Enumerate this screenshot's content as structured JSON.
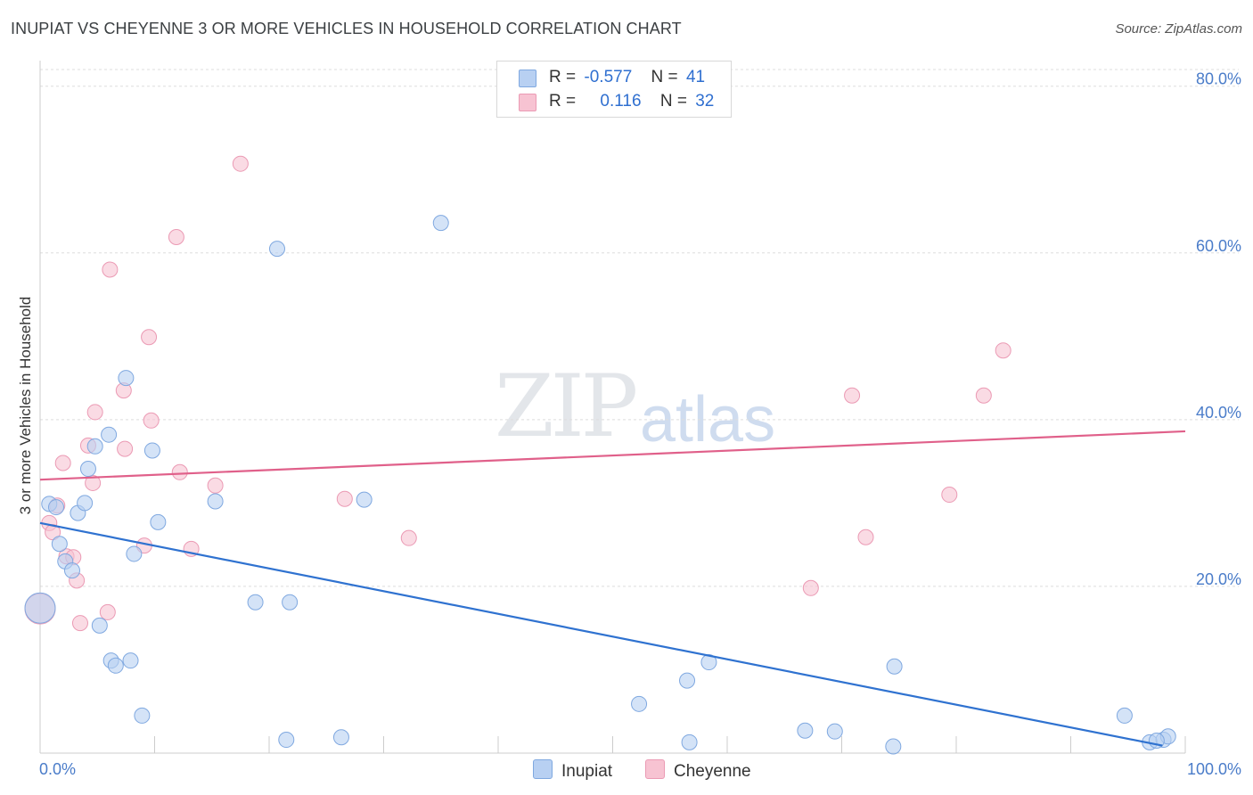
{
  "title": "INUPIAT VS CHEYENNE 3 OR MORE VEHICLES IN HOUSEHOLD CORRELATION CHART",
  "source": "Source: ZipAtlas.com",
  "watermark": {
    "zip": "ZIP",
    "atlas": "atlas"
  },
  "legend": {
    "inupiat": {
      "r_label": "R =",
      "r_value": "-0.577",
      "n_label": "N =",
      "n_value": "41"
    },
    "cheyenne": {
      "r_label": "R =",
      "r_value": "0.116",
      "n_label": "N =",
      "n_value": "32"
    }
  },
  "bottom_legend": {
    "inupiat": "Inupiat",
    "cheyenne": "Cheyenne"
  },
  "colors": {
    "inupiat_fill": "#b8d0f2",
    "inupiat_stroke": "#7fa8e0",
    "inupiat_line": "#2f72d0",
    "cheyenne_fill": "#f7c3d2",
    "cheyenne_stroke": "#eb9ab4",
    "cheyenne_line": "#e0608a",
    "tick": "#4a7cc9",
    "grid": "#dddddd"
  },
  "chart_data": {
    "type": "scatter",
    "title": "INUPIAT VS CHEYENNE 3 OR MORE VEHICLES IN HOUSEHOLD CORRELATION CHART",
    "xlabel": "",
    "ylabel": "3 or more Vehicles in Household",
    "xlim": [
      0,
      100
    ],
    "ylim": [
      0,
      82
    ],
    "x_tick_labels": [
      "0.0%",
      "100.0%"
    ],
    "y_ticks": [
      20,
      40,
      60,
      80
    ],
    "y_tick_labels": [
      "20.0%",
      "40.0%",
      "60.0%",
      "80.0%"
    ],
    "grid": true,
    "series": [
      {
        "name": "Inupiat",
        "R": -0.577,
        "N": 41,
        "trend": {
          "x": [
            0,
            98
          ],
          "y": [
            27.6,
            0.9
          ]
        },
        "points": [
          {
            "x": 0.0,
            "y": 17.4,
            "big": true
          },
          {
            "x": 0.8,
            "y": 29.9
          },
          {
            "x": 1.4,
            "y": 29.5
          },
          {
            "x": 1.7,
            "y": 25.1
          },
          {
            "x": 2.2,
            "y": 23.0
          },
          {
            "x": 2.8,
            "y": 21.9
          },
          {
            "x": 3.3,
            "y": 28.8
          },
          {
            "x": 3.9,
            "y": 30.0
          },
          {
            "x": 4.2,
            "y": 34.1
          },
          {
            "x": 4.8,
            "y": 36.8
          },
          {
            "x": 5.2,
            "y": 15.3
          },
          {
            "x": 6.0,
            "y": 38.2
          },
          {
            "x": 6.2,
            "y": 11.1
          },
          {
            "x": 6.6,
            "y": 10.5
          },
          {
            "x": 7.5,
            "y": 45.0
          },
          {
            "x": 7.9,
            "y": 11.1
          },
          {
            "x": 8.2,
            "y": 23.9
          },
          {
            "x": 8.9,
            "y": 4.5
          },
          {
            "x": 9.8,
            "y": 36.3
          },
          {
            "x": 10.3,
            "y": 27.7
          },
          {
            "x": 15.3,
            "y": 30.2
          },
          {
            "x": 18.8,
            "y": 18.1
          },
          {
            "x": 20.7,
            "y": 60.5
          },
          {
            "x": 21.5,
            "y": 1.6
          },
          {
            "x": 21.8,
            "y": 18.1
          },
          {
            "x": 26.3,
            "y": 1.9
          },
          {
            "x": 28.3,
            "y": 30.4
          },
          {
            "x": 35.0,
            "y": 63.6
          },
          {
            "x": 52.3,
            "y": 5.9
          },
          {
            "x": 56.5,
            "y": 8.7
          },
          {
            "x": 56.7,
            "y": 1.3
          },
          {
            "x": 58.4,
            "y": 10.9
          },
          {
            "x": 66.8,
            "y": 2.7
          },
          {
            "x": 69.4,
            "y": 2.6
          },
          {
            "x": 74.5,
            "y": 0.8
          },
          {
            "x": 74.6,
            "y": 10.4
          },
          {
            "x": 94.7,
            "y": 4.5
          },
          {
            "x": 96.9,
            "y": 1.3
          },
          {
            "x": 98.1,
            "y": 1.6
          },
          {
            "x": 98.5,
            "y": 2.0
          },
          {
            "x": 97.5,
            "y": 1.5
          }
        ]
      },
      {
        "name": "Cheyenne",
        "R": 0.116,
        "N": 32,
        "trend": {
          "x": [
            0,
            100
          ],
          "y": [
            32.8,
            38.6
          ]
        },
        "points": [
          {
            "x": 0.0,
            "y": 17.3,
            "big": true
          },
          {
            "x": 0.8,
            "y": 27.6
          },
          {
            "x": 1.1,
            "y": 26.5
          },
          {
            "x": 1.5,
            "y": 29.7
          },
          {
            "x": 2.0,
            "y": 34.8
          },
          {
            "x": 2.3,
            "y": 23.6
          },
          {
            "x": 2.9,
            "y": 23.5
          },
          {
            "x": 3.2,
            "y": 20.7
          },
          {
            "x": 3.5,
            "y": 15.6
          },
          {
            "x": 4.2,
            "y": 36.9
          },
          {
            "x": 4.6,
            "y": 32.4
          },
          {
            "x": 4.8,
            "y": 40.9
          },
          {
            "x": 5.9,
            "y": 16.9
          },
          {
            "x": 6.1,
            "y": 58.0
          },
          {
            "x": 7.3,
            "y": 43.5
          },
          {
            "x": 7.4,
            "y": 36.5
          },
          {
            "x": 9.1,
            "y": 24.9
          },
          {
            "x": 9.5,
            "y": 49.9
          },
          {
            "x": 9.7,
            "y": 39.9
          },
          {
            "x": 11.9,
            "y": 61.9
          },
          {
            "x": 12.2,
            "y": 33.7
          },
          {
            "x": 13.2,
            "y": 24.5
          },
          {
            "x": 15.3,
            "y": 32.1
          },
          {
            "x": 17.5,
            "y": 70.7
          },
          {
            "x": 26.6,
            "y": 30.5
          },
          {
            "x": 32.2,
            "y": 25.8
          },
          {
            "x": 67.3,
            "y": 19.8
          },
          {
            "x": 70.9,
            "y": 42.9
          },
          {
            "x": 72.1,
            "y": 25.9
          },
          {
            "x": 79.4,
            "y": 31.0
          },
          {
            "x": 82.4,
            "y": 42.9
          },
          {
            "x": 84.1,
            "y": 48.3
          }
        ]
      }
    ]
  }
}
